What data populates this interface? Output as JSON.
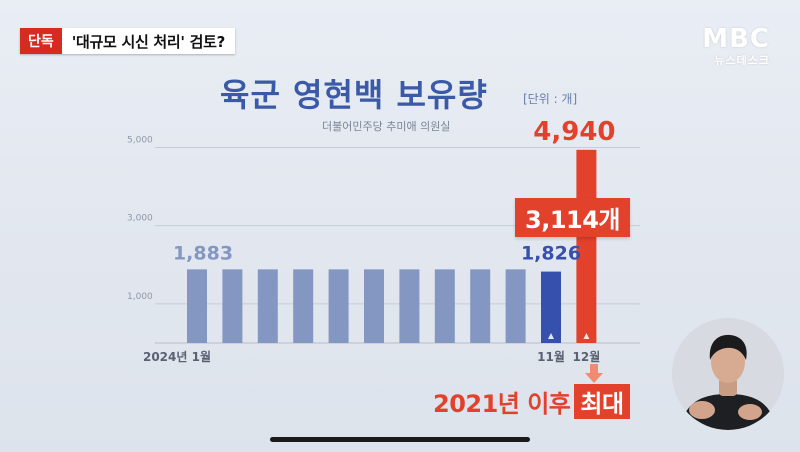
{
  "headline": {
    "badge": "단독",
    "text": "'대규모 시신 처리' 검토?"
  },
  "broadcaster": {
    "logo": "MBC",
    "sub": "뉴스데스크"
  },
  "chart_data": {
    "type": "bar",
    "title": "육군 영현백 보유량",
    "unit": "[단위 : 개]",
    "source": "더불어민주당 추미애 의원실",
    "y_ticks": [
      1000,
      3000,
      5000
    ],
    "y_tick_labels": [
      "1,000",
      "3,000",
      "5,000"
    ],
    "ylim": [
      0,
      5600
    ],
    "grid": true,
    "x_labels": [
      {
        "index": 0,
        "text": "2024년 1월"
      },
      {
        "index": 10,
        "text": "11월"
      },
      {
        "index": 11,
        "text": "12월"
      }
    ],
    "values": [
      1883,
      1883,
      1883,
      1883,
      1883,
      1883,
      1883,
      1883,
      1883,
      1883,
      1826,
      4940
    ],
    "data_labels": [
      {
        "index": 0,
        "text": "1,883"
      },
      {
        "index": 10,
        "text": "1,826"
      },
      {
        "index": 11,
        "text": "4,940"
      }
    ],
    "colors": {
      "normal": "#8497c2",
      "highlight": "#3550ad",
      "max": "#e2412c"
    },
    "callout": "3,114개",
    "note": {
      "text": "2021년 이후",
      "highlight": "최대"
    }
  }
}
